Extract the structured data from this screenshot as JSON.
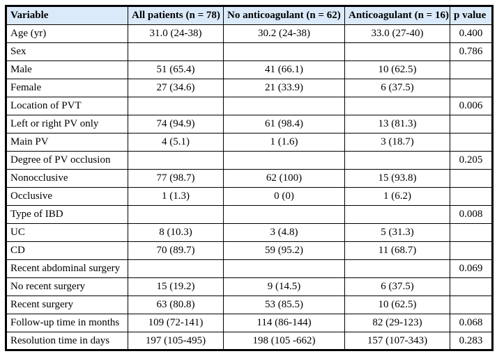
{
  "table": {
    "colors": {
      "header_bg": "#dbeafa",
      "border": "#000000"
    },
    "headers": {
      "variable": "Variable",
      "all_patients": "All patients (n = 78)",
      "no_anticoagulant": "No anticoagulant (n = 62)",
      "anticoagulant": "Anticoagulant (n = 16)",
      "p_value": "p value"
    },
    "rows": [
      [
        "Age (yr)",
        "31.0 (24-38)",
        "30.2 (24-38)",
        "33.0 (27-40)",
        "0.400"
      ],
      [
        "Sex",
        "",
        "",
        "",
        "0.786"
      ],
      [
        "Male",
        "51 (65.4)",
        "41 (66.1)",
        "10 (62.5)",
        ""
      ],
      [
        "Female",
        "27 (34.6)",
        "21 (33.9)",
        "6 (37.5)",
        ""
      ],
      [
        "Location of PVT",
        "",
        "",
        "",
        "0.006"
      ],
      [
        "Left or right PV only",
        "74 (94.9)",
        "61 (98.4)",
        "13 (81.3)",
        ""
      ],
      [
        "Main PV",
        "4 (5.1)",
        "1 (1.6)",
        "3 (18.7)",
        ""
      ],
      [
        "Degree of PV occlusion",
        "",
        "",
        "",
        "0.205"
      ],
      [
        "Nonocclusive",
        "77 (98.7)",
        "62 (100)",
        "15 (93.8)",
        ""
      ],
      [
        "Occlusive",
        "1 (1.3)",
        "0 (0)",
        "1 (6.2)",
        ""
      ],
      [
        "Type of IBD",
        "",
        "",
        "",
        "0.008"
      ],
      [
        "UC",
        "8 (10.3)",
        "3 (4.8)",
        "5 (31.3)",
        ""
      ],
      [
        "CD",
        "70 (89.7)",
        "59 (95.2)",
        "11 (68.7)",
        ""
      ],
      [
        "Recent abdominal surgery",
        "",
        "",
        "",
        "0.069"
      ],
      [
        "No recent surgery",
        "15 (19.2)",
        "9 (14.5)",
        "6 (37.5)",
        ""
      ],
      [
        "Recent surgery",
        "63 (80.8)",
        "53 (85.5)",
        "10 (62.5)",
        ""
      ],
      [
        "Follow-up time in months",
        "109 (72-141)",
        "114 (86-144)",
        "82 (29-123)",
        "0.068"
      ],
      [
        "Resolution time in days",
        "197 (105-495)",
        "198 (105 -662)",
        "157 (107-343)",
        "0.283"
      ]
    ]
  }
}
